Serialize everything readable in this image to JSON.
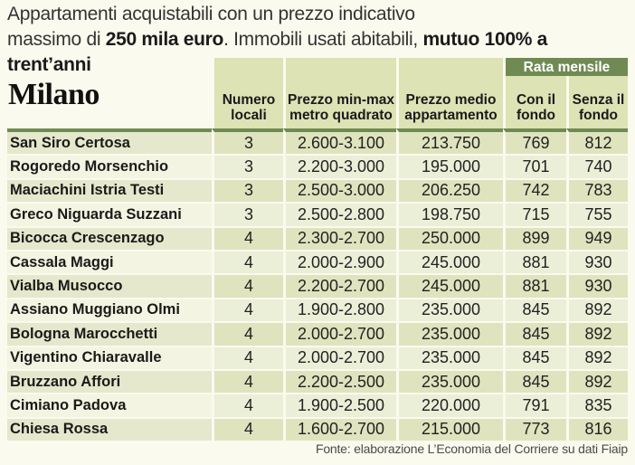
{
  "headline": {
    "line1": "Appartamenti acquistabili con un prezzo indicativo",
    "line2_pre": "massimo di ",
    "line2_bold1": "250 mila euro",
    "line2_mid": ". Immobili usati abitabili, ",
    "line2_bold2": "mutuo 100% a trent’anni"
  },
  "table": {
    "city": "Milano",
    "group_header": "Rata mensile",
    "columns": {
      "locali": "Numero locali",
      "mq": "Prezzo min-max metro quadrato",
      "medio": "Prezzo medio appartamento",
      "con": "Con il fondo",
      "senza": "Senza il fondo"
    },
    "rows": [
      {
        "zona": "San Siro Certosa",
        "locali": "3",
        "mq": "2.600-3.100",
        "medio": "213.750",
        "con": "769",
        "senza": "812"
      },
      {
        "zona": "Rogoredo Morsenchio",
        "locali": "3",
        "mq": "2.200-3.000",
        "medio": "195.000",
        "con": "701",
        "senza": "740"
      },
      {
        "zona": "Maciachini Istria Testi",
        "locali": "3",
        "mq": "2.500-3.000",
        "medio": "206.250",
        "con": "742",
        "senza": "783"
      },
      {
        "zona": "Greco Niguarda Suzzani",
        "locali": "3",
        "mq": "2.500-2.800",
        "medio": "198.750",
        "con": "715",
        "senza": "755"
      },
      {
        "zona": "Bicocca Crescenzago",
        "locali": "4",
        "mq": "2.300-2.700",
        "medio": "250.000",
        "con": "899",
        "senza": "949"
      },
      {
        "zona": "Cassala Maggi",
        "locali": "4",
        "mq": "2.000-2.900",
        "medio": "245.000",
        "con": "881",
        "senza": "930"
      },
      {
        "zona": "Vialba Musocco",
        "locali": "4",
        "mq": "2.200-2.700",
        "medio": "245.000",
        "con": "881",
        "senza": "930"
      },
      {
        "zona": "Assiano Muggiano Olmi",
        "locali": "4",
        "mq": "1.900-2.800",
        "medio": "235.000",
        "con": "845",
        "senza": "892"
      },
      {
        "zona": "Bologna Marocchetti",
        "locali": "4",
        "mq": "2.000-2.700",
        "medio": "235.000",
        "con": "845",
        "senza": "892"
      },
      {
        "zona": "Vigentino Chiaravalle",
        "locali": "4",
        "mq": "2.000-2.700",
        "medio": "235.000",
        "con": "845",
        "senza": "892"
      },
      {
        "zona": "Bruzzano Affori",
        "locali": "4",
        "mq": "2.200-2.500",
        "medio": "235.000",
        "con": "845",
        "senza": "892"
      },
      {
        "zona": "Cimiano Padova",
        "locali": "4",
        "mq": "1.900-2.500",
        "medio": "220.000",
        "con": "791",
        "senza": "835"
      },
      {
        "zona": "Chiesa Rossa",
        "locali": "4",
        "mq": "1.600-2.700",
        "medio": "215.000",
        "con": "773",
        "senza": "816"
      }
    ]
  },
  "source": "Fonte: elaborazione L’Economia del Corriere su dati Fiaip"
}
